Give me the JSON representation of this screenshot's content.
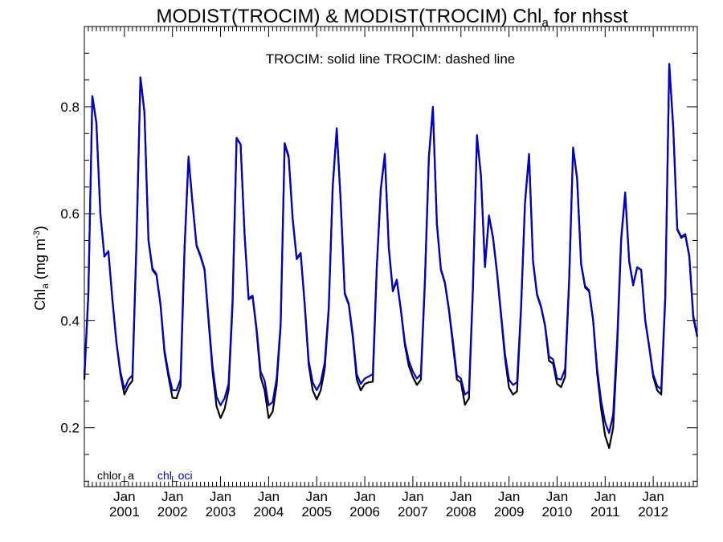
{
  "chart_data": {
    "type": "line",
    "title_main": "MODIST(TROCIM) & MODIST(TROCIM)  Chl",
    "title_sub": "a",
    "title_tail": " for nhsst",
    "annotation": "TROCIM: solid line   TROCIM: dashed line",
    "ylabel_main": "Chl",
    "ylabel_sub": "a",
    "ylabel_unit": " (mg m",
    "ylabel_sup": "-3",
    "ylabel_close": ")",
    "ylim": [
      0.09,
      0.95
    ],
    "yticks": [
      "0.2",
      "0.4",
      "0.6",
      "0.8"
    ],
    "x_start": "2000-03",
    "x_end": "2012-12",
    "xticks": [
      {
        "month": "Jan",
        "year": "2001"
      },
      {
        "month": "Jan",
        "year": "2002"
      },
      {
        "month": "Jan",
        "year": "2003"
      },
      {
        "month": "Jan",
        "year": "2004"
      },
      {
        "month": "Jan",
        "year": "2005"
      },
      {
        "month": "Jan",
        "year": "2006"
      },
      {
        "month": "Jan",
        "year": "2007"
      },
      {
        "month": "Jan",
        "year": "2008"
      },
      {
        "month": "Jan",
        "year": "2009"
      },
      {
        "month": "Jan",
        "year": "2010"
      },
      {
        "month": "Jan",
        "year": "2011"
      },
      {
        "month": "Jan",
        "year": "2012"
      }
    ],
    "grid": false,
    "legend_position": "bottom-left",
    "series": [
      {
        "name": "chlor_a",
        "color": "#000000",
        "values": [
          0.29,
          0.45,
          0.82,
          0.77,
          0.6,
          0.52,
          0.53,
          0.44,
          0.36,
          0.3,
          0.262,
          0.278,
          0.288,
          0.54,
          0.855,
          0.79,
          0.55,
          0.495,
          0.485,
          0.43,
          0.34,
          0.295,
          0.256,
          0.255,
          0.278,
          0.53,
          0.705,
          0.62,
          0.54,
          0.52,
          0.495,
          0.4,
          0.305,
          0.24,
          0.218,
          0.235,
          0.27,
          0.43,
          0.74,
          0.73,
          0.56,
          0.44,
          0.445,
          0.38,
          0.295,
          0.27,
          0.218,
          0.23,
          0.28,
          0.39,
          0.73,
          0.705,
          0.59,
          0.515,
          0.525,
          0.43,
          0.318,
          0.27,
          0.253,
          0.27,
          0.31,
          0.42,
          0.65,
          0.758,
          0.62,
          0.45,
          0.43,
          0.37,
          0.29,
          0.27,
          0.282,
          0.285,
          0.286,
          0.5,
          0.645,
          0.71,
          0.535,
          0.455,
          0.475,
          0.42,
          0.355,
          0.315,
          0.295,
          0.28,
          0.29,
          0.47,
          0.705,
          0.798,
          0.58,
          0.495,
          0.47,
          0.42,
          0.355,
          0.29,
          0.285,
          0.243,
          0.255,
          0.46,
          0.745,
          0.67,
          0.5,
          0.595,
          0.555,
          0.49,
          0.41,
          0.33,
          0.275,
          0.262,
          0.268,
          0.42,
          0.62,
          0.71,
          0.51,
          0.448,
          0.425,
          0.39,
          0.325,
          0.32,
          0.282,
          0.276,
          0.295,
          0.47,
          0.722,
          0.665,
          0.505,
          0.462,
          0.455,
          0.4,
          0.302,
          0.235,
          0.185,
          0.162,
          0.2,
          0.35,
          0.55,
          0.638,
          0.51,
          0.466,
          0.5,
          0.495,
          0.4,
          0.35,
          0.295,
          0.27,
          0.262,
          0.44,
          0.88,
          0.76,
          0.57,
          0.555,
          0.56,
          0.52,
          0.405,
          0.37
        ],
        "dashed": false
      },
      {
        "name": "chl_oci",
        "color": "#0000cc",
        "values": [
          0.3,
          0.45,
          0.82,
          0.77,
          0.6,
          0.52,
          0.53,
          0.44,
          0.36,
          0.305,
          0.272,
          0.29,
          0.298,
          0.545,
          0.855,
          0.79,
          0.552,
          0.498,
          0.487,
          0.432,
          0.345,
          0.302,
          0.27,
          0.27,
          0.29,
          0.535,
          0.707,
          0.62,
          0.542,
          0.522,
          0.497,
          0.405,
          0.315,
          0.258,
          0.242,
          0.255,
          0.282,
          0.44,
          0.742,
          0.73,
          0.562,
          0.442,
          0.447,
          0.385,
          0.305,
          0.288,
          0.242,
          0.248,
          0.292,
          0.395,
          0.732,
          0.708,
          0.592,
          0.517,
          0.527,
          0.432,
          0.325,
          0.285,
          0.27,
          0.285,
          0.322,
          0.425,
          0.652,
          0.76,
          0.622,
          0.452,
          0.432,
          0.375,
          0.3,
          0.282,
          0.292,
          0.296,
          0.3,
          0.502,
          0.647,
          0.712,
          0.537,
          0.457,
          0.477,
          0.422,
          0.36,
          0.325,
          0.305,
          0.292,
          0.3,
          0.475,
          0.707,
          0.8,
          0.582,
          0.497,
          0.472,
          0.422,
          0.362,
          0.298,
          0.292,
          0.262,
          0.268,
          0.465,
          0.747,
          0.672,
          0.502,
          0.597,
          0.557,
          0.492,
          0.415,
          0.338,
          0.29,
          0.28,
          0.285,
          0.425,
          0.622,
          0.712,
          0.512,
          0.45,
          0.427,
          0.392,
          0.333,
          0.328,
          0.292,
          0.29,
          0.31,
          0.475,
          0.724,
          0.667,
          0.507,
          0.465,
          0.457,
          0.402,
          0.31,
          0.25,
          0.21,
          0.19,
          0.225,
          0.365,
          0.555,
          0.64,
          0.512,
          0.468,
          0.5,
          0.495,
          0.402,
          0.352,
          0.3,
          0.278,
          0.272,
          0.445,
          0.88,
          0.762,
          0.572,
          0.557,
          0.562,
          0.522,
          0.41,
          0.372
        ],
        "dashed": false
      }
    ]
  }
}
